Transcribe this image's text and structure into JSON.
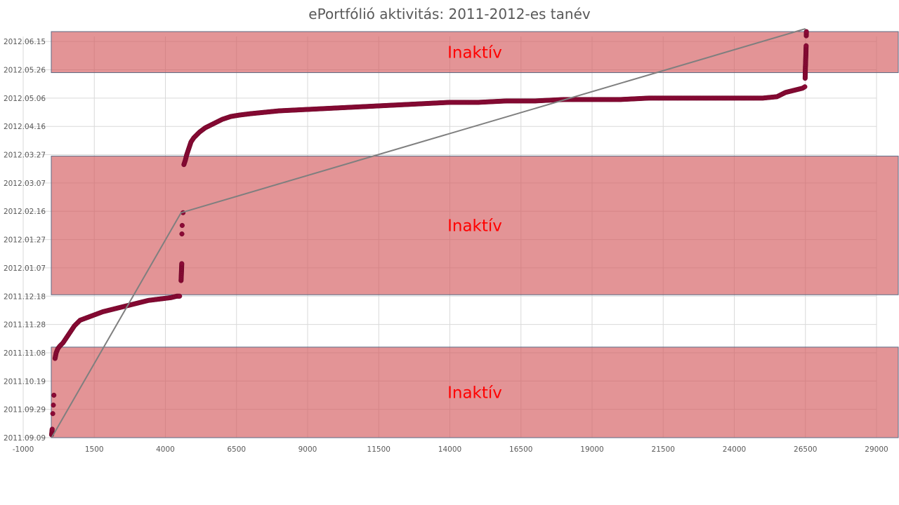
{
  "chart_data": {
    "type": "scatter",
    "title": "ePortfólió aktivitás: 2011-2012-es tanév",
    "xlabel": "",
    "ylabel": "",
    "xlim": [
      -1000,
      29000
    ],
    "ylim": [
      "2011.09.09",
      "2012.06.25"
    ],
    "grid": true,
    "x_ticks": [
      "-1000",
      "1500",
      "4000",
      "6500",
      "9000",
      "11500",
      "14000",
      "16500",
      "19000",
      "21500",
      "24000",
      "26500",
      "29000"
    ],
    "y_ticks": [
      "2011.09.09",
      "2011.09.29",
      "2011.10.19",
      "2011.11.08",
      "2011.11.28",
      "2011.12.18",
      "2012.01.07",
      "2012.01.27",
      "2012.02.16",
      "2012.03.07",
      "2012.03.27",
      "2012.04.16",
      "2012.05.06",
      "2012.05.26",
      "2012.06.15"
    ],
    "inactive_bands": [
      {
        "label": "Inaktív",
        "from": "2011.09.09",
        "to": "2011.11.12"
      },
      {
        "label": "Inaktív",
        "from": "2011.12.19",
        "to": "2012.03.26"
      },
      {
        "label": "Inaktív",
        "from": "2012.05.24",
        "to": "2012.06.22"
      }
    ],
    "series": [
      {
        "color": "#8b0a36",
        "x": [
          0,
          10,
          20,
          40,
          60,
          80,
          120,
          160,
          220,
          300,
          400,
          600,
          800,
          1000,
          1400,
          1800,
          2200,
          2600,
          3000,
          3400,
          3800,
          4200,
          4400,
          4500,
          4550,
          4560,
          4565,
          4570,
          4575,
          4580,
          4590,
          4620,
          4650,
          4700,
          4750,
          4800,
          4850,
          4900,
          5000,
          5200,
          5400,
          5600,
          5800,
          6000,
          6300,
          6600,
          7000,
          7500,
          8000,
          9000,
          10000,
          11000,
          12000,
          13000,
          14000,
          15000,
          16000,
          17000,
          18000,
          19000,
          20000,
          21000,
          22000,
          23000,
          24000,
          25000,
          25500,
          25700,
          25800,
          26000,
          26200,
          26400,
          26480,
          26490,
          26495,
          26500,
          26505,
          26510,
          26515,
          26520,
          26525,
          26530,
          26535
        ],
        "y": [
          "2011.09.11",
          "2011.09.13",
          "2011.09.15",
          "2011.09.26",
          "2011.10.02",
          "2011.10.09",
          "2011.11.04",
          "2011.11.08",
          "2011.11.11",
          "2011.11.13",
          "2011.11.15",
          "2011.11.21",
          "2011.11.27",
          "2011.12.01",
          "2011.12.04",
          "2011.12.07",
          "2011.12.09",
          "2011.12.11",
          "2011.12.13",
          "2011.12.15",
          "2011.12.16",
          "2011.12.17",
          "2011.12.18",
          "2011.12.18",
          "2011.12.29",
          "2012.01.02",
          "2012.01.05",
          "2012.01.07",
          "2012.01.10",
          "2012.01.31",
          "2012.02.06",
          "2012.02.15",
          "2012.03.20",
          "2012.03.23",
          "2012.03.27",
          "2012.03.30",
          "2012.04.02",
          "2012.04.05",
          "2012.04.08",
          "2012.04.12",
          "2012.04.15",
          "2012.04.17",
          "2012.04.19",
          "2012.04.21",
          "2012.04.23",
          "2012.04.24",
          "2012.04.25",
          "2012.04.26",
          "2012.04.27",
          "2012.04.28",
          "2012.04.29",
          "2012.04.30",
          "2012.05.01",
          "2012.05.02",
          "2012.05.03",
          "2012.05.03",
          "2012.05.04",
          "2012.05.04",
          "2012.05.05",
          "2012.05.05",
          "2012.05.05",
          "2012.05.06",
          "2012.05.06",
          "2012.05.06",
          "2012.05.06",
          "2012.05.06",
          "2012.05.07",
          "2012.05.09",
          "2012.05.10",
          "2012.05.11",
          "2012.05.12",
          "2012.05.13",
          "2012.05.14",
          "2012.05.20",
          "2012.05.24",
          "2012.05.28",
          "2012.05.30",
          "2012.06.02",
          "2012.06.05",
          "2012.06.08",
          "2012.06.12",
          "2012.06.19",
          "2012.06.22"
        ]
      },
      {
        "type": "line",
        "color": "#7f7f7f",
        "x": [
          0,
          4550,
          26500
        ],
        "y": [
          "2011.09.09",
          "2012.02.15",
          "2012.06.24"
        ]
      }
    ]
  }
}
